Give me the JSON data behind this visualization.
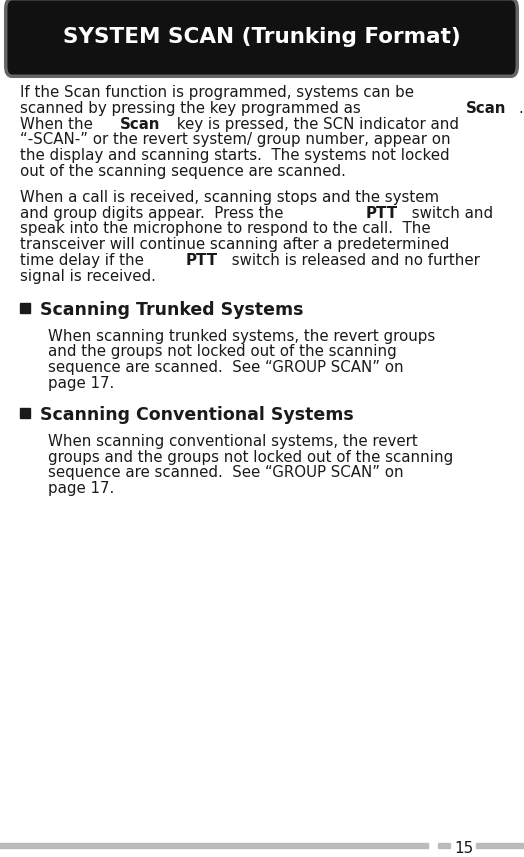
{
  "title": "SYSTEM SCAN (Trunking Format)",
  "title_bg": "#111111",
  "title_color": "#ffffff",
  "body_bg": "#ffffff",
  "body_text_color": "#1a1a1a",
  "page_number": "15",
  "font_size_body": 10.8,
  "font_size_heading": 12.5,
  "font_size_title": 15.5,
  "line_color": "#bbbbbb",
  "lines_para1": [
    [
      [
        "If the Scan function is programmed, systems can be",
        false
      ]
    ],
    [
      [
        "scanned by pressing the key programmed as ",
        false
      ],
      [
        "Scan",
        true
      ],
      [
        ".",
        false
      ]
    ],
    [
      [
        "When the ",
        false
      ],
      [
        "Scan",
        true
      ],
      [
        " key is pressed, the SCN indicator and",
        false
      ]
    ],
    [
      [
        "“-SCAN-” or the revert system/ group number, appear on",
        false
      ]
    ],
    [
      [
        "the display and scanning starts.  The systems not locked",
        false
      ]
    ],
    [
      [
        "out of the scanning sequence are scanned.",
        false
      ]
    ]
  ],
  "lines_para2": [
    [
      [
        "When a call is received, scanning stops and the system",
        false
      ]
    ],
    [
      [
        "and group digits appear.  Press the ",
        false
      ],
      [
        "PTT",
        true
      ],
      [
        " switch and",
        false
      ]
    ],
    [
      [
        "speak into the microphone to respond to the call.  The",
        false
      ]
    ],
    [
      [
        "transceiver will continue scanning after a predetermined",
        false
      ]
    ],
    [
      [
        "time delay if the ",
        false
      ],
      [
        "PTT",
        true
      ],
      [
        " switch is released and no further",
        false
      ]
    ],
    [
      [
        "signal is received.",
        false
      ]
    ]
  ],
  "section1_title": "Scanning Trunked Systems",
  "lines_section1": [
    [
      [
        "When scanning trunked systems, the revert groups",
        false
      ]
    ],
    [
      [
        "and the groups not locked out of the scanning",
        false
      ]
    ],
    [
      [
        "sequence are scanned.  See “GROUP SCAN” on",
        false
      ]
    ],
    [
      [
        "page 17.",
        false
      ]
    ]
  ],
  "section2_title": "Scanning Conventional Systems",
  "lines_section2": [
    [
      [
        "When scanning conventional systems, the revert",
        false
      ]
    ],
    [
      [
        "groups and the groups not locked out of the scanning",
        false
      ]
    ],
    [
      [
        "sequence are scanned.  See “GROUP SCAN” on",
        false
      ]
    ],
    [
      [
        "page 17.",
        false
      ]
    ]
  ]
}
